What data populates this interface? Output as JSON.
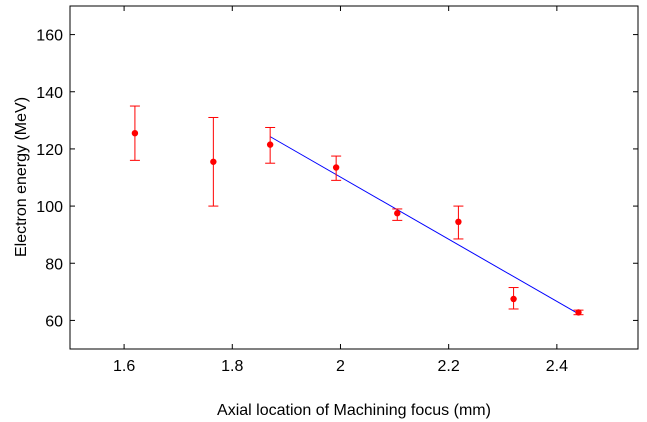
{
  "chart_data": {
    "type": "scatter",
    "xlabel": "Axial location of Machining focus (mm)",
    "ylabel": "Electron energy (MeV)",
    "xlim": [
      1.5,
      2.55
    ],
    "ylim": [
      50,
      170
    ],
    "xticks": [
      1.6,
      1.8,
      2,
      2.2,
      2.4
    ],
    "xtick_labels": [
      "1.6",
      "1.8",
      "2",
      "2.2",
      "2.4"
    ],
    "yticks": [
      60,
      80,
      100,
      120,
      140,
      160
    ],
    "ytick_labels": [
      "60",
      "80",
      "100",
      "120",
      "140",
      "160"
    ],
    "grid": false,
    "legend": "none",
    "series": [
      {
        "kind": "points-with-errorbars",
        "color": "#ff0000",
        "x": [
          1.62,
          1.765,
          1.87,
          1.992,
          2.105,
          2.218,
          2.32,
          2.44
        ],
        "y": [
          125.5,
          115.5,
          121.5,
          113.5,
          97.5,
          94.5,
          67.5,
          62.8
        ],
        "err_low": [
          9.5,
          15.5,
          6.5,
          4.5,
          2.5,
          6.0,
          3.5,
          0.8
        ],
        "err_high": [
          9.5,
          15.5,
          6.0,
          4.0,
          1.5,
          5.5,
          4.0,
          0.8
        ]
      },
      {
        "kind": "fit-line",
        "color": "#0000ff",
        "x": [
          1.87,
          2.44
        ],
        "y": [
          124.3,
          62.3
        ]
      }
    ]
  }
}
